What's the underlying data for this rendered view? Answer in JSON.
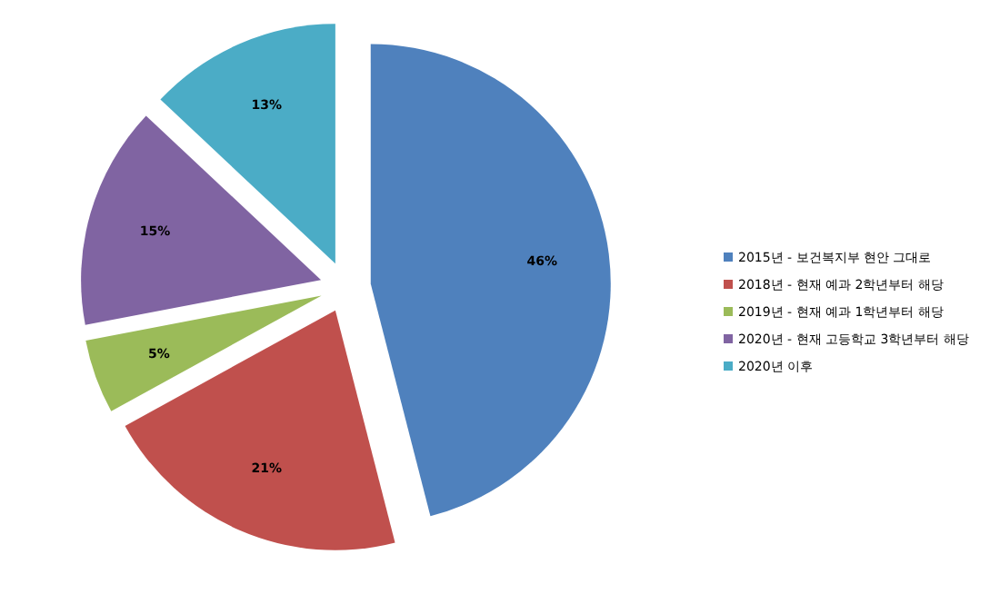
{
  "chart_data": {
    "type": "pie",
    "categories": [
      "2015년 - 보건복지부 현안 그대로",
      "2018년 - 현재 예과 2학년부터 해당",
      "2019년 - 현재 예과 1학년부터 해당",
      "2020년 - 현재 고등학교 3학년부터 해당",
      "2020년 이후"
    ],
    "values": [
      46,
      21,
      5,
      15,
      13
    ],
    "colors": [
      "#4f81bd",
      "#c0504d",
      "#9bbb59",
      "#8064a2",
      "#4bacc6"
    ],
    "value_labels": [
      "46%",
      "21%",
      "5%",
      "15%",
      "13%"
    ],
    "legend": "right"
  }
}
